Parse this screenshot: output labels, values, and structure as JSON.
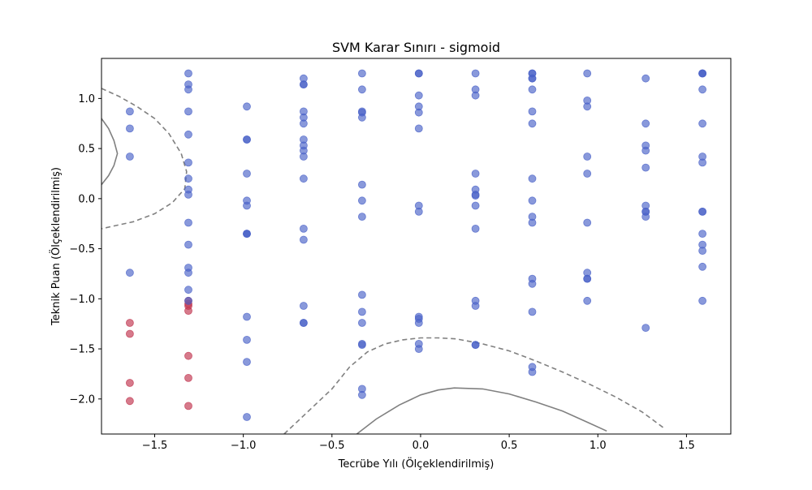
{
  "chart_data": {
    "type": "scatter",
    "title": "SVM Karar Sınırı - sigmoid",
    "xlabel": "Tecrübe Yılı (Ölçeklendirilmiş)",
    "ylabel": "Teknik Puan (Ölçeklendirilmiş)",
    "xlim": [
      -1.8,
      1.75
    ],
    "ylim": [
      -2.35,
      1.4
    ],
    "xticks": [
      -1.5,
      -1.0,
      -0.5,
      0.0,
      0.5,
      1.0,
      1.5
    ],
    "xtick_labels": [
      "−1.5",
      "−1.0",
      "−0.5",
      "0.0",
      "0.5",
      "1.0",
      "1.5"
    ],
    "yticks": [
      -2.0,
      -1.5,
      -1.0,
      -0.5,
      0.0,
      0.5,
      1.0
    ],
    "ytick_labels": [
      "−2.0",
      "−1.5",
      "−1.0",
      "−0.5",
      "0.0",
      "0.5",
      "1.0"
    ],
    "grid": false,
    "colors": {
      "class_0": "#c0334d",
      "class_1": "#4a62c8",
      "decision_line": "#808080"
    },
    "series": [
      {
        "class": 0,
        "x": [
          -1.64,
          -1.64,
          -1.64,
          -1.64,
          -1.31,
          -1.31,
          -1.31,
          -1.31,
          -1.31,
          -1.31,
          -1.31
        ],
        "y": [
          -1.24,
          -1.35,
          -1.84,
          -2.02,
          -1.02,
          -1.07,
          -1.12,
          -1.57,
          -1.79,
          -2.07,
          -1.05
        ]
      },
      {
        "class": 1,
        "x": [
          -1.64,
          -1.64,
          -1.64,
          -1.64,
          -1.31,
          -1.31,
          -1.31,
          -1.31,
          -1.31,
          -1.31,
          -1.31,
          -1.31,
          -1.31,
          -1.31,
          -1.31,
          -1.31,
          -1.31,
          -1.31,
          -1.31,
          -0.98,
          -0.98,
          -0.98,
          -0.98,
          -0.98,
          -0.98,
          -0.98,
          -0.98,
          -0.98,
          -0.98,
          -0.98,
          -0.98,
          -0.98,
          -0.66,
          -0.66,
          -0.66,
          -0.66,
          -0.66,
          -0.66,
          -0.66,
          -0.66,
          -0.66,
          -0.66,
          -0.66,
          -0.66,
          -0.66,
          -0.66,
          -0.66,
          -0.66,
          -0.33,
          -0.33,
          -0.33,
          -0.33,
          -0.33,
          -0.33,
          -0.33,
          -0.33,
          -0.33,
          -0.33,
          -0.33,
          -0.33,
          -0.33,
          -0.33,
          -0.33,
          -0.01,
          -0.01,
          -0.01,
          -0.01,
          -0.01,
          -0.01,
          -0.01,
          -0.01,
          -0.01,
          -0.01,
          -0.01,
          -0.01,
          -0.01,
          0.31,
          0.31,
          0.31,
          0.31,
          0.31,
          0.31,
          0.31,
          0.31,
          0.31,
          0.31,
          0.31,
          0.31,
          0.31,
          0.63,
          0.63,
          0.63,
          0.63,
          0.63,
          0.63,
          0.63,
          0.63,
          0.63,
          0.63,
          0.63,
          0.63,
          0.63,
          0.63,
          0.63,
          0.63,
          0.94,
          0.94,
          0.94,
          0.94,
          0.94,
          0.94,
          0.94,
          0.94,
          0.94,
          0.94,
          1.27,
          1.27,
          1.27,
          1.27,
          1.27,
          1.27,
          1.27,
          1.27,
          1.27,
          1.27,
          1.59,
          1.59,
          1.59,
          1.59,
          1.59,
          1.59,
          1.59,
          1.59,
          1.59,
          1.59,
          1.59,
          1.59,
          1.59,
          1.59
        ],
        "y": [
          0.87,
          0.7,
          0.42,
          -0.74,
          1.25,
          1.14,
          1.09,
          0.87,
          0.64,
          0.36,
          0.2,
          0.09,
          0.04,
          -0.24,
          -0.46,
          -0.69,
          -0.74,
          -0.91,
          -1.02,
          0.92,
          0.59,
          0.59,
          0.25,
          -0.02,
          -0.07,
          -0.35,
          -0.35,
          -1.18,
          -1.41,
          -1.63,
          -2.18,
          -0.35,
          1.2,
          1.14,
          1.14,
          0.87,
          0.81,
          0.75,
          0.59,
          0.53,
          0.48,
          0.42,
          0.2,
          -0.3,
          -0.41,
          -1.07,
          -1.24,
          -1.24,
          1.25,
          1.09,
          0.87,
          0.81,
          0.14,
          -0.02,
          -0.18,
          -0.96,
          -1.13,
          -1.46,
          -1.9,
          -1.96,
          0.86,
          -1.24,
          -1.45,
          1.25,
          1.25,
          1.03,
          0.92,
          0.86,
          0.7,
          -0.07,
          -0.13,
          -1.18,
          -1.24,
          -1.45,
          -1.5,
          -1.2,
          1.25,
          1.09,
          1.03,
          0.25,
          0.09,
          0.04,
          0.03,
          -0.07,
          -0.3,
          -1.02,
          -1.07,
          -1.46,
          -1.46,
          1.25,
          1.2,
          1.2,
          1.25,
          1.09,
          0.87,
          0.75,
          0.2,
          -0.02,
          -0.18,
          -0.24,
          -0.8,
          -0.85,
          -1.13,
          -1.68,
          -1.73,
          1.25,
          0.98,
          0.92,
          0.42,
          0.25,
          -0.24,
          -0.74,
          -0.8,
          -0.8,
          -1.02,
          1.2,
          0.75,
          0.53,
          0.48,
          0.31,
          -0.07,
          -0.13,
          -0.18,
          -1.29,
          -0.13,
          1.25,
          1.25,
          1.09,
          0.75,
          0.42,
          0.36,
          -0.13,
          -0.13,
          -0.35,
          -0.46,
          -0.52,
          -0.68,
          -1.02,
          1.25
        ]
      }
    ],
    "decision_boundary": {
      "style": "solid",
      "segments": [
        [
          [
            -1.8,
            0.8
          ],
          [
            -1.76,
            0.7
          ],
          [
            -1.73,
            0.58
          ],
          [
            -1.71,
            0.45
          ],
          [
            -1.73,
            0.33
          ],
          [
            -1.76,
            0.23
          ],
          [
            -1.8,
            0.14
          ]
        ],
        [
          [
            -0.36,
            -2.35
          ],
          [
            -0.25,
            -2.2
          ],
          [
            -0.12,
            -2.06
          ],
          [
            0.0,
            -1.96
          ],
          [
            0.1,
            -1.91
          ],
          [
            0.19,
            -1.89
          ],
          [
            0.35,
            -1.9
          ],
          [
            0.5,
            -1.95
          ],
          [
            0.65,
            -2.03
          ],
          [
            0.8,
            -2.12
          ],
          [
            0.95,
            -2.24
          ],
          [
            1.05,
            -2.32
          ]
        ]
      ]
    },
    "margins": {
      "style": "dashed",
      "segments": [
        [
          [
            -1.8,
            1.1
          ],
          [
            -1.7,
            1.02
          ],
          [
            -1.6,
            0.92
          ],
          [
            -1.5,
            0.8
          ],
          [
            -1.42,
            0.65
          ],
          [
            -1.35,
            0.45
          ],
          [
            -1.32,
            0.27
          ],
          [
            -1.33,
            0.1
          ],
          [
            -1.4,
            -0.04
          ],
          [
            -1.5,
            -0.15
          ],
          [
            -1.62,
            -0.23
          ],
          [
            -1.8,
            -0.3
          ]
        ],
        [
          [
            -0.77,
            -2.35
          ],
          [
            -0.65,
            -2.15
          ],
          [
            -0.5,
            -1.9
          ],
          [
            -0.4,
            -1.68
          ],
          [
            -0.3,
            -1.53
          ],
          [
            -0.2,
            -1.45
          ],
          [
            -0.1,
            -1.41
          ],
          [
            0.0,
            -1.39
          ],
          [
            0.1,
            -1.39
          ],
          [
            0.2,
            -1.4
          ],
          [
            0.35,
            -1.45
          ],
          [
            0.5,
            -1.52
          ],
          [
            0.65,
            -1.62
          ],
          [
            0.8,
            -1.73
          ],
          [
            0.95,
            -1.85
          ],
          [
            1.1,
            -1.98
          ],
          [
            1.25,
            -2.13
          ],
          [
            1.38,
            -2.3
          ]
        ]
      ]
    }
  }
}
